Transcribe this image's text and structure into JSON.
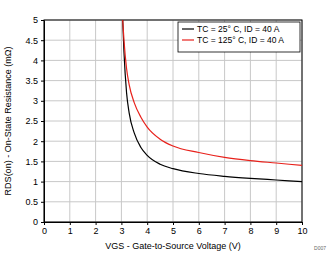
{
  "chart_data": {
    "type": "line",
    "x_label": "VGS - Gate-to-Source Voltage (V)",
    "y_label": "RDS(on) - On-State Resistance (mΩ)",
    "annotation": "D007",
    "x": [
      3.05,
      3.1,
      3.2,
      3.3,
      3.5,
      3.75,
      4,
      4.5,
      5,
      6,
      7,
      8,
      9,
      10
    ],
    "series": [
      {
        "name": "TC = 25° C, ID = 40 A",
        "color": "#000000",
        "values": [
          5,
          4.2,
          3.2,
          2.7,
          2.2,
          1.85,
          1.65,
          1.43,
          1.32,
          1.2,
          1.13,
          1.08,
          1.04,
          1.0
        ]
      },
      {
        "name": "TC = 125° C, ID = 40 A",
        "color": "#e8211b",
        "values": [
          5,
          4.5,
          3.8,
          3.4,
          2.95,
          2.6,
          2.35,
          2.05,
          1.88,
          1.72,
          1.6,
          1.52,
          1.46,
          1.4
        ]
      }
    ],
    "xlim": [
      0,
      10
    ],
    "xticks": [
      0,
      1,
      2,
      3,
      4,
      5,
      6,
      7,
      8,
      9,
      10
    ],
    "ylim": [
      0,
      5
    ],
    "yticks": [
      0,
      0.5,
      1,
      1.5,
      2,
      2.5,
      3,
      3.5,
      4,
      4.5,
      5
    ],
    "grid": true,
    "legend": "top-right"
  }
}
